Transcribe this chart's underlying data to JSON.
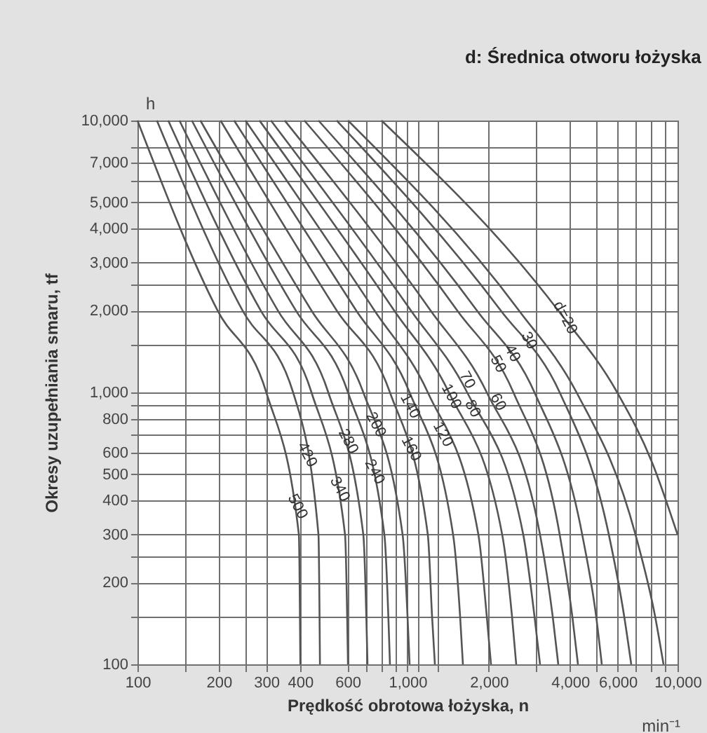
{
  "chart_data": {
    "type": "line",
    "title": "d: Średnica otworu łożyska",
    "xlabel": "Prędkość obrotowa łożyska, n",
    "ylabel": "Okresy uzupełniania smaru, tf",
    "log": "xy",
    "grid": true,
    "xlim": [
      100,
      10000
    ],
    "ylim": [
      100,
      10000
    ],
    "xticks": [
      100,
      {
        "value": 150,
        "label": null
      },
      200,
      {
        "value": 250,
        "label": null
      },
      300,
      400,
      600,
      {
        "value": 700,
        "label": null
      },
      {
        "value": 800,
        "label": null
      },
      {
        "value": 900,
        "label": null
      },
      {
        "value": 1000,
        "label": "1,000"
      },
      {
        "value": 1100,
        "label": null
      },
      {
        "value": 1300,
        "label": null
      },
      {
        "value": 2000,
        "label": "2,000"
      },
      {
        "value": 3000,
        "label": null
      },
      {
        "value": 4000,
        "label": "4,000"
      },
      {
        "value": 5000,
        "label": null
      },
      {
        "value": 6000,
        "label": "6,000"
      },
      {
        "value": 7000,
        "label": null
      },
      {
        "value": 8000,
        "label": null
      },
      {
        "value": 9000,
        "label": null
      },
      {
        "value": 10000,
        "label": "10,000"
      }
    ],
    "yticks": [
      100,
      {
        "value": 150,
        "label": null
      },
      200,
      {
        "value": 250,
        "label": null
      },
      300,
      400,
      500,
      600,
      {
        "value": 700,
        "label": null
      },
      800,
      {
        "value": 900,
        "label": null
      },
      {
        "value": 1000,
        "label": "1,000"
      },
      {
        "value": 1500,
        "label": null
      },
      {
        "value": 2000,
        "label": "2,000"
      },
      {
        "value": 2500,
        "label": null
      },
      {
        "value": 3000,
        "label": "3,000"
      },
      {
        "value": 4000,
        "label": "4,000"
      },
      {
        "value": 5000,
        "label": "5,000"
      },
      {
        "value": 6000,
        "label": null
      },
      {
        "value": 7000,
        "label": "7,000"
      },
      {
        "value": 8000,
        "label": null
      },
      {
        "value": 10000,
        "label": "10,000"
      }
    ],
    "series": [
      {
        "color": "#555555",
        "x": [
          100,
          198,
          300,
          396,
          401
        ],
        "values": [
          10000,
          2000,
          1000,
          300,
          100
        ]
      },
      {
        "color": "#555555",
        "x": [
          118,
          245,
          377,
          468,
          474
        ],
        "values": [
          10000,
          2000,
          1000,
          300,
          100
        ]
      },
      {
        "color": "#555555",
        "x": [
          130,
          286,
          441,
          587,
          602
        ],
        "values": [
          10000,
          2000,
          1000,
          300,
          100
        ]
      },
      {
        "color": "#555555",
        "x": [
          143,
          331,
          509,
          686,
          711
        ],
        "values": [
          10000,
          2000,
          1000,
          300,
          100
        ]
      },
      {
        "color": "#555555",
        "x": [
          159,
          386,
          602,
          821,
          861
        ],
        "values": [
          10000,
          2000,
          1000,
          300,
          100
        ]
      },
      {
        "color": "#555555",
        "x": [
          171,
          441,
          686,
          959,
          1018
        ],
        "values": [
          10000,
          2000,
          1000,
          300,
          100
        ]
      },
      {
        "color": "#555555",
        "x": [
          203,
          547,
          861,
          1189,
          1233,
          1263
        ],
        "values": [
          10000,
          2000,
          1000,
          300,
          150,
          100
        ]
      },
      {
        "color": "#555555",
        "x": [
          228,
          646,
          1018,
          1475,
          1566,
          1604
        ],
        "values": [
          10000,
          2000,
          1000,
          300,
          150,
          100
        ]
      },
      {
        "color": "#555555",
        "x": [
          251,
          755,
          1189,
          1830,
          1966,
          2038
        ],
        "values": [
          10000,
          2000,
          1000,
          300,
          150,
          100
        ]
      },
      {
        "color": "#555555",
        "x": [
          283,
          893,
          1423,
          2242,
          2438,
          2527
        ],
        "values": [
          10000,
          2000,
          1000,
          300,
          150,
          100
        ]
      },
      {
        "color": "#555555",
        "x": [
          312,
          1030,
          1663,
          2683,
          2953,
          3096
        ],
        "values": [
          10000,
          2000,
          1000,
          300,
          150,
          100
        ]
      },
      {
        "color": "#555555",
        "x": [
          351,
          1218,
          1966,
          3096,
          3449,
          3617
        ],
        "values": [
          10000,
          2000,
          1000,
          300,
          150,
          100
        ]
      },
      {
        "color": "#555555",
        "x": [
          415,
          1529,
          2467,
          3661,
          4077,
          4278
        ],
        "values": [
          10000,
          2000,
          1000,
          300,
          150,
          100
        ]
      },
      {
        "color": "#555555",
        "x": [
          468,
          1808,
          2953,
          4436,
          4996,
          5242
        ],
        "values": [
          10000,
          2000,
          1000,
          300,
          150,
          100
        ]
      },
      {
        "color": "#555555",
        "x": [
          547,
          2216,
          3661,
          5566,
          6346,
          6738
        ],
        "values": [
          10000,
          2000,
          1000,
          300,
          150,
          100
        ]
      },
      {
        "color": "#555555",
        "x": [
          602,
          2588,
          4227,
          6987,
          8260,
          8872
        ],
        "values": [
          10000,
          2000,
          1000,
          300,
          150,
          100
        ]
      },
      {
        "color": "#555555",
        "x": [
          801,
          3617,
          5978,
          8064,
          10000
        ],
        "values": [
          10000,
          2000,
          1000,
          550,
          300
        ]
      }
    ],
    "annotations": [
      "h",
      "min⁻¹",
      {
        "text": "d=20",
        "x": 3830,
        "y": 1880
      },
      {
        "text": "30",
        "x": 2810,
        "y": 1550
      },
      {
        "text": "40",
        "x": 2440,
        "y": 1390
      },
      {
        "text": "50",
        "x": 2160,
        "y": 1270
      },
      {
        "text": "60",
        "x": 2160,
        "y": 920
      },
      {
        "text": "70",
        "x": 1660,
        "y": 1110
      },
      {
        "text": "80",
        "x": 1740,
        "y": 870
      },
      {
        "text": "100",
        "x": 1450,
        "y": 965
      },
      {
        "text": "120",
        "x": 1350,
        "y": 700
      },
      {
        "text": "140",
        "x": 1020,
        "y": 890
      },
      {
        "text": "160",
        "x": 1030,
        "y": 620
      },
      {
        "text": "200",
        "x": 763,
        "y": 760
      },
      {
        "text": "240",
        "x": 755,
        "y": 510
      },
      {
        "text": "280",
        "x": 602,
        "y": 660
      },
      {
        "text": "340",
        "x": 560,
        "y": 440
      },
      {
        "text": "420",
        "x": 424,
        "y": 590
      },
      {
        "text": "500",
        "x": 391,
        "y": 380
      }
    ]
  }
}
